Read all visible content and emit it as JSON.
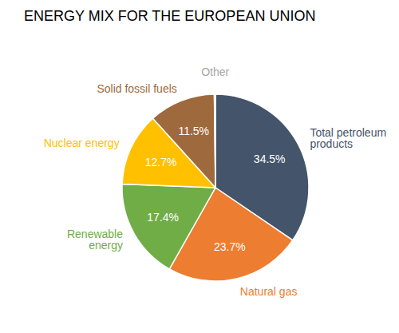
{
  "chart_data": {
    "type": "pie",
    "title": "ENERGY MIX FOR THE EUROPEAN UNION",
    "categories": [
      "Total petroleum products",
      "Natural gas",
      "Renewable energy",
      "Nuclear energy",
      "Solid fossil fuels",
      "Other"
    ],
    "values": [
      34.5,
      23.7,
      17.4,
      12.7,
      11.5,
      0.2
    ],
    "value_labels": [
      "34.5%",
      "23.7%",
      "17.4%",
      "12.7%",
      "11.5%",
      null
    ],
    "colors": [
      "#44546a",
      "#ed7d31",
      "#70ad47",
      "#ffc000",
      "#9e6a3d",
      "#a5a5a5"
    ],
    "data_labels": true
  }
}
